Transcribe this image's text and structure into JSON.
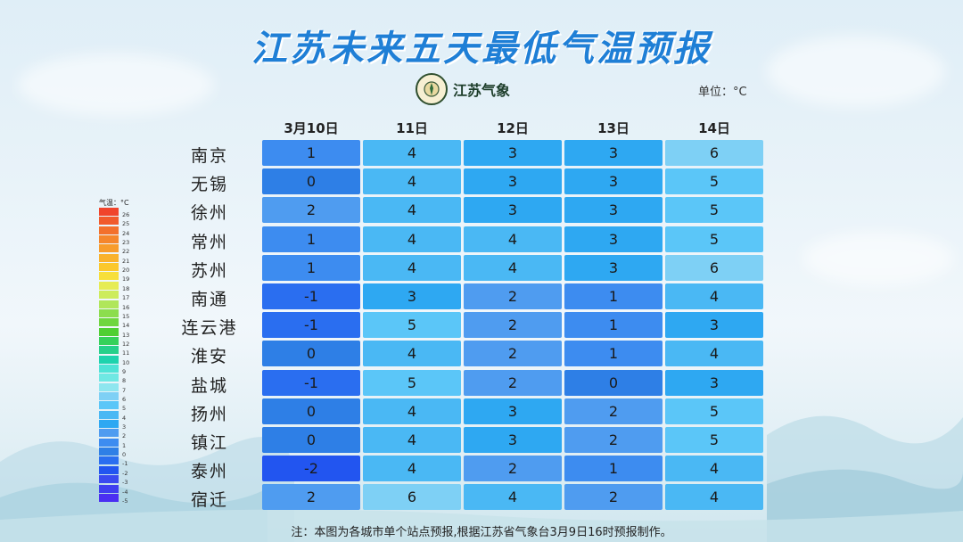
{
  "title": "江苏未来五天最低气温预报",
  "logo_text": "江苏气象",
  "unit_label": "单位：°C",
  "note": "注：本图为各城市单个站点预报,根据江苏省气象台3月9日16时预报制作。",
  "chart_data": {
    "type": "heatmap",
    "title": "江苏未来五天最低气温预报",
    "columns": [
      "3月10日",
      "11日",
      "12日",
      "13日",
      "14日"
    ],
    "rows": [
      "南京",
      "无锡",
      "徐州",
      "常州",
      "苏州",
      "南通",
      "连云港",
      "淮安",
      "盐城",
      "扬州",
      "镇江",
      "泰州",
      "宿迁"
    ],
    "values": [
      [
        1,
        4,
        3,
        3,
        6
      ],
      [
        0,
        4,
        3,
        3,
        5
      ],
      [
        2,
        4,
        3,
        3,
        5
      ],
      [
        1,
        4,
        4,
        3,
        5
      ],
      [
        1,
        4,
        4,
        3,
        6
      ],
      [
        -1,
        3,
        2,
        1,
        4
      ],
      [
        -1,
        5,
        2,
        1,
        3
      ],
      [
        0,
        4,
        2,
        1,
        4
      ],
      [
        -1,
        5,
        2,
        0,
        3
      ],
      [
        0,
        4,
        3,
        2,
        5
      ],
      [
        0,
        4,
        3,
        2,
        5
      ],
      [
        -2,
        4,
        2,
        1,
        4
      ],
      [
        2,
        6,
        4,
        2,
        4
      ]
    ],
    "unit": "°C",
    "legend": {
      "title": "气温：°C",
      "levels": [
        {
          "label": "26",
          "color": "#f0442c"
        },
        {
          "label": "25",
          "color": "#f15a2c"
        },
        {
          "label": "24",
          "color": "#f3702c"
        },
        {
          "label": "23",
          "color": "#f5862c"
        },
        {
          "label": "22",
          "color": "#f79c2c"
        },
        {
          "label": "21",
          "color": "#f9b22c"
        },
        {
          "label": "20",
          "color": "#fbc82c"
        },
        {
          "label": "19",
          "color": "#f7df3a"
        },
        {
          "label": "18",
          "color": "#e6ec55"
        },
        {
          "label": "17",
          "color": "#cdec5c"
        },
        {
          "label": "16",
          "color": "#b0e65a"
        },
        {
          "label": "15",
          "color": "#8cdd4e"
        },
        {
          "label": "14",
          "color": "#6fd63f"
        },
        {
          "label": "13",
          "color": "#4fcf33"
        },
        {
          "label": "12",
          "color": "#35d15a"
        },
        {
          "label": "11",
          "color": "#26d08a"
        },
        {
          "label": "10",
          "color": "#1ed3ad"
        },
        {
          "label": "9",
          "color": "#4fe3d6"
        },
        {
          "label": "8",
          "color": "#6fe8e3"
        },
        {
          "label": "7",
          "color": "#8ee6ef"
        },
        {
          "label": "6",
          "color": "#7ed0f5"
        },
        {
          "label": "5",
          "color": "#5bc6f8"
        },
        {
          "label": "4",
          "color": "#4ab8f4"
        },
        {
          "label": "3",
          "color": "#2ea8f2"
        },
        {
          "label": "2",
          "color": "#4f9cf0"
        },
        {
          "label": "1",
          "color": "#3d8cf0"
        },
        {
          "label": "0",
          "color": "#2e7fe6"
        },
        {
          "label": "-1",
          "color": "#2a6ef0"
        },
        {
          "label": "-2",
          "color": "#2255f0"
        },
        {
          "label": "-3",
          "color": "#3a4af0"
        },
        {
          "label": "-4",
          "color": "#3f3ff0"
        },
        {
          "label": "-5",
          "color": "#4a2ff2"
        }
      ]
    }
  }
}
